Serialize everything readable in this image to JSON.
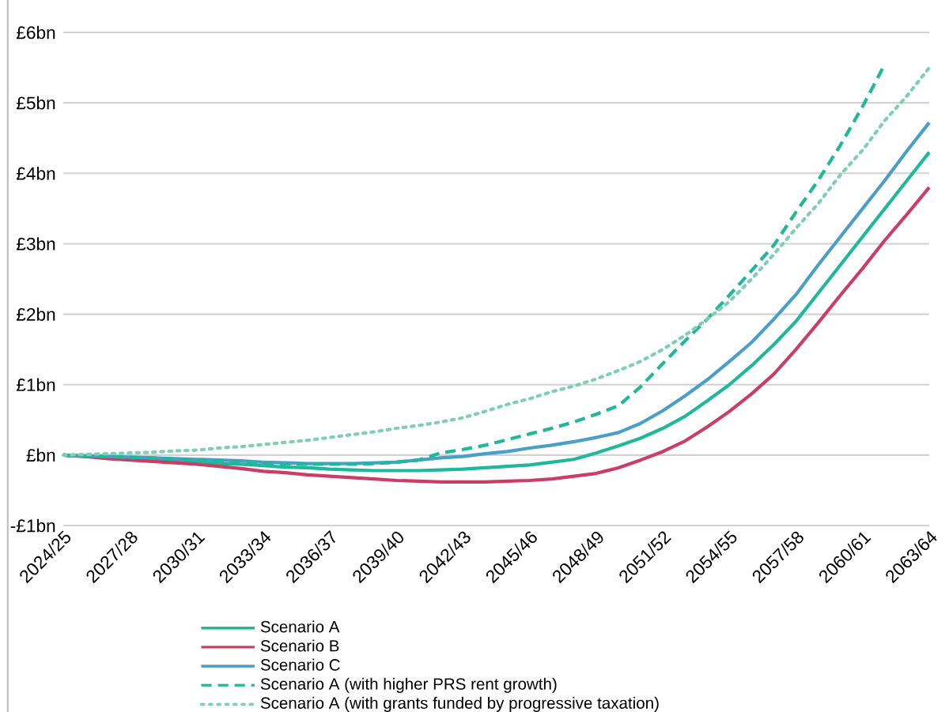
{
  "chart_data": {
    "type": "line",
    "categories": [
      "2024/25",
      null,
      null,
      "2027/28",
      null,
      null,
      "2030/31",
      null,
      null,
      "2033/34",
      null,
      null,
      "2036/37",
      null,
      null,
      "2039/40",
      null,
      null,
      "2042/43",
      null,
      null,
      "2045/46",
      null,
      null,
      "2048/49",
      null,
      null,
      "2051/52",
      null,
      null,
      "2054/55",
      null,
      null,
      "2057/58",
      null,
      null,
      "2060/61",
      null,
      null,
      "2063/64"
    ],
    "series": [
      {
        "name": "Scenario A",
        "color": "#1fb89a",
        "line_style": "solid",
        "values": [
          0,
          -0.02,
          -0.03,
          -0.05,
          -0.07,
          -0.08,
          -0.1,
          -0.12,
          -0.13,
          -0.15,
          -0.17,
          -0.18,
          -0.2,
          -0.21,
          -0.22,
          -0.22,
          -0.22,
          -0.21,
          -0.2,
          -0.18,
          -0.16,
          -0.14,
          -0.1,
          -0.06,
          0.03,
          0.13,
          0.24,
          0.38,
          0.55,
          0.77,
          1.0,
          1.27,
          1.57,
          1.9,
          2.3,
          2.7,
          3.1,
          3.5,
          3.9,
          4.3
        ]
      },
      {
        "name": "Scenario B",
        "color": "#cc3d66",
        "line_style": "solid",
        "values": [
          0,
          -0.02,
          -0.05,
          -0.07,
          -0.09,
          -0.11,
          -0.13,
          -0.16,
          -0.19,
          -0.23,
          -0.25,
          -0.28,
          -0.3,
          -0.32,
          -0.34,
          -0.36,
          -0.37,
          -0.38,
          -0.38,
          -0.38,
          -0.37,
          -0.36,
          -0.34,
          -0.3,
          -0.26,
          -0.18,
          -0.07,
          0.05,
          0.2,
          0.4,
          0.62,
          0.87,
          1.15,
          1.5,
          1.88,
          2.27,
          2.65,
          3.05,
          3.42,
          3.8
        ]
      },
      {
        "name": "Scenario C",
        "color": "#4a9fc8",
        "line_style": "solid",
        "values": [
          0,
          -0.01,
          -0.02,
          -0.03,
          -0.04,
          -0.05,
          -0.06,
          -0.07,
          -0.08,
          -0.1,
          -0.11,
          -0.12,
          -0.12,
          -0.12,
          -0.11,
          -0.1,
          -0.07,
          -0.04,
          -0.02,
          0.02,
          0.05,
          0.1,
          0.14,
          0.19,
          0.25,
          0.32,
          0.45,
          0.63,
          0.84,
          1.07,
          1.33,
          1.6,
          1.93,
          2.28,
          2.7,
          3.1,
          3.5,
          3.9,
          4.32,
          4.72
        ]
      },
      {
        "name": "Scenario A (with higher PRS rent growth)",
        "color": "#1fb89a",
        "line_style": "dashed",
        "values": [
          0,
          -0.01,
          -0.02,
          -0.03,
          -0.04,
          -0.06,
          -0.07,
          -0.09,
          -0.1,
          -0.12,
          -0.13,
          -0.13,
          -0.13,
          -0.13,
          -0.12,
          -0.1,
          -0.07,
          0.03,
          0.08,
          0.14,
          0.22,
          0.3,
          0.38,
          0.47,
          0.58,
          0.7,
          0.97,
          1.3,
          1.62,
          1.93,
          2.27,
          2.62,
          2.98,
          3.45,
          3.9,
          4.4,
          4.95,
          5.55,
          null,
          null
        ]
      },
      {
        "name": "Scenario A (with grants funded by progressive taxation)",
        "color": "#7fcfb5",
        "line_style": "dotted",
        "values": [
          0,
          0.01,
          0.02,
          0.03,
          0.04,
          0.06,
          0.07,
          0.1,
          0.12,
          0.15,
          0.18,
          0.21,
          0.25,
          0.29,
          0.33,
          0.38,
          0.42,
          0.47,
          0.53,
          0.62,
          0.72,
          0.8,
          0.9,
          0.98,
          1.08,
          1.2,
          1.33,
          1.5,
          1.7,
          1.93,
          2.18,
          2.5,
          2.85,
          3.22,
          3.57,
          3.98,
          4.33,
          4.75,
          5.1,
          5.5
        ]
      }
    ],
    "ylim": [
      -1,
      6
    ],
    "yticks": [
      {
        "value": -1,
        "label": "-£1bn"
      },
      {
        "value": 0,
        "label": "£bn"
      },
      {
        "value": 1,
        "label": "£1bn"
      },
      {
        "value": 2,
        "label": "£2bn"
      },
      {
        "value": 3,
        "label": "£3bn"
      },
      {
        "value": 4,
        "label": "£4bn"
      },
      {
        "value": 5,
        "label": "£5bn"
      },
      {
        "value": 6,
        "label": "£6bn"
      }
    ],
    "grid": "y",
    "legend": "bottom"
  }
}
